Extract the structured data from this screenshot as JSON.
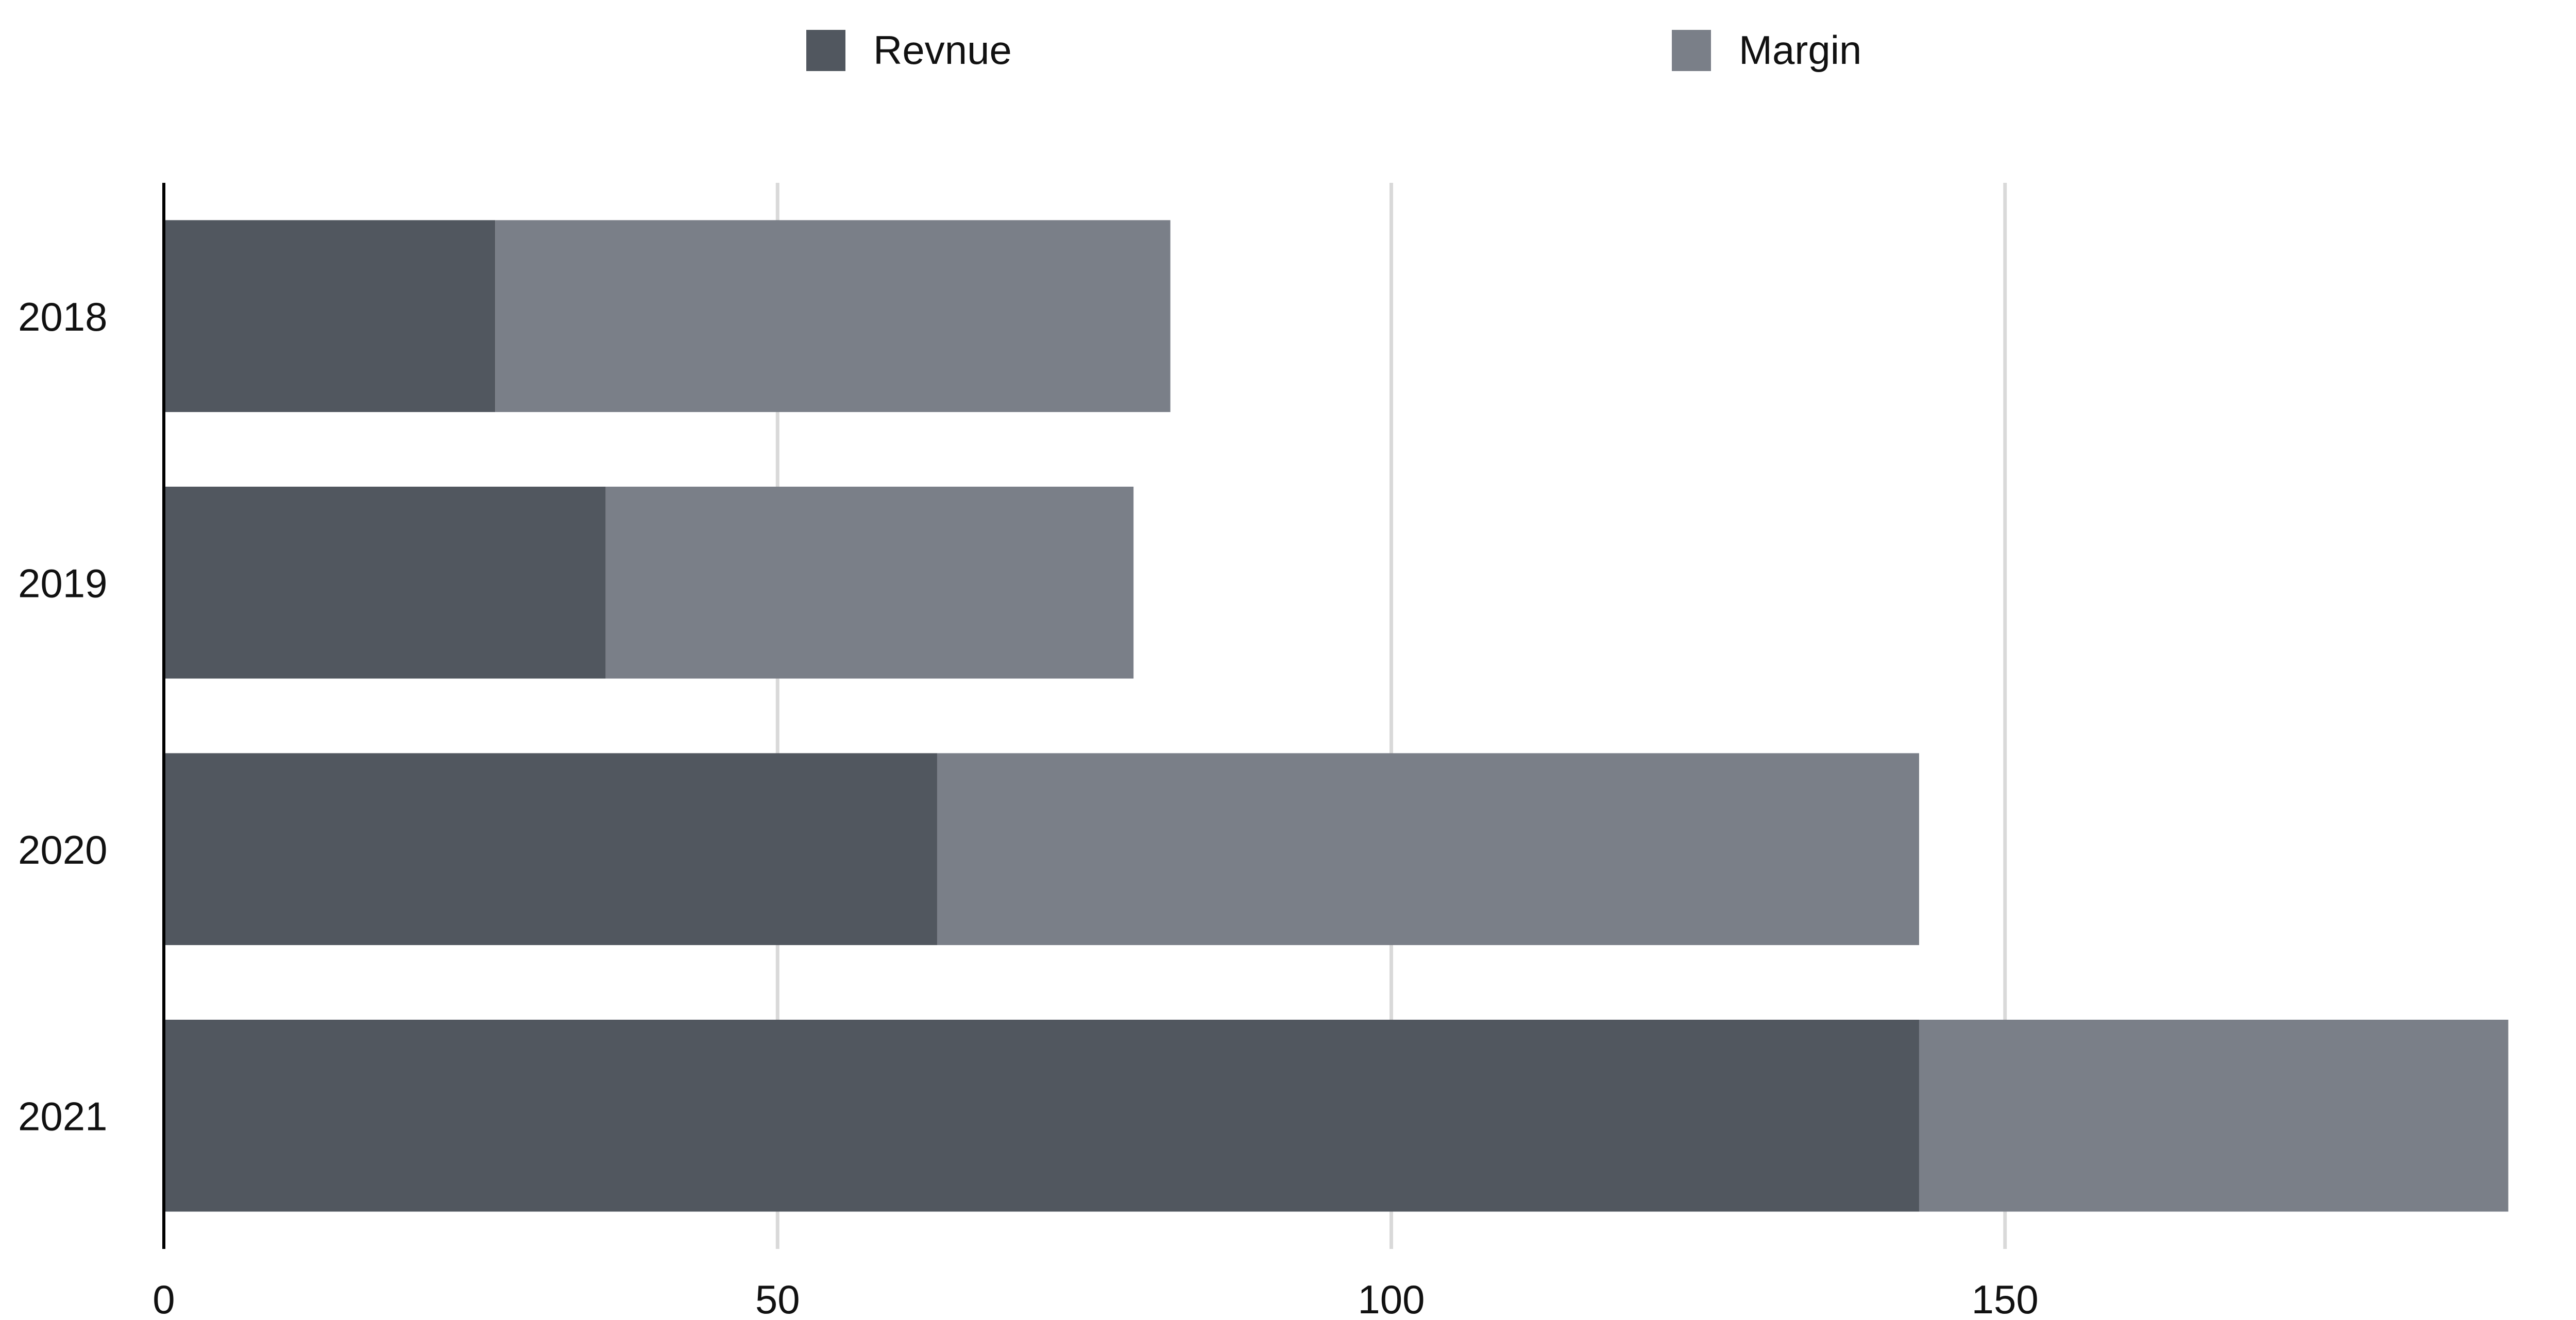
{
  "chart_data": {
    "type": "bar",
    "orientation": "horizontal",
    "stacked": true,
    "categories": [
      "2018",
      "2019",
      "2020",
      "2021"
    ],
    "series": [
      {
        "name": "Revnue",
        "values": [
          27,
          36,
          63,
          143
        ],
        "color": "#51575f"
      },
      {
        "name": "Margin",
        "values": [
          55,
          43,
          80,
          48
        ],
        "color": "#7a7f88"
      }
    ],
    "xlim": [
      0,
      200
    ],
    "xticks": [
      0,
      50,
      100,
      150,
      200
    ],
    "grid": "vertical",
    "legend_position": "top-center",
    "title": "",
    "xlabel": "",
    "ylabel": ""
  }
}
